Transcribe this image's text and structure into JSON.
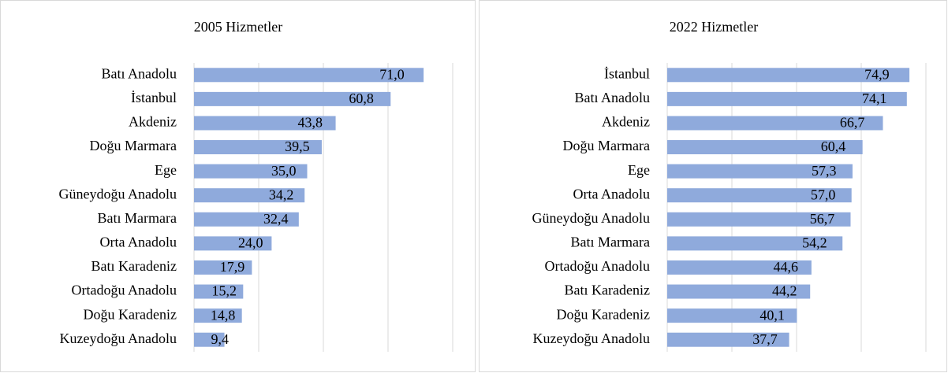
{
  "chart_data": [
    {
      "type": "bar",
      "title": "2005 Hizmetler",
      "categories": [
        "Batı Anadolu",
        "İstanbul",
        "Akdeniz",
        "Doğu Marmara",
        "Ege",
        "Güneydoğu Anadolu",
        "Batı Marmara",
        "Orta Anadolu",
        "Batı Karadeniz",
        "Ortadoğu Anadolu",
        "Doğu Karadeniz",
        "Kuzeydoğu Anadolu"
      ],
      "values": [
        71.0,
        60.8,
        43.8,
        39.5,
        35.0,
        34.2,
        32.4,
        24.0,
        17.9,
        15.2,
        14.8,
        9.4
      ],
      "value_labels": [
        "71,0",
        "60,8",
        "43,8",
        "39,5",
        "35,0",
        "34,2",
        "32,4",
        "24,0",
        "17,9",
        "15,2",
        "14,8",
        "9,4"
      ],
      "color": "#8faadc",
      "xlim": [
        0,
        80
      ],
      "xticks": [
        0,
        20,
        40,
        60,
        80
      ],
      "grid": true
    },
    {
      "type": "bar",
      "title": "2022 Hizmetler",
      "categories": [
        "İstanbul",
        "Batı Anadolu",
        "Akdeniz",
        "Doğu Marmara",
        "Ege",
        "Orta Anadolu",
        "Güneydoğu Anadolu",
        "Batı Marmara",
        "Ortadoğu Anadolu",
        "Batı Karadeniz",
        "Doğu Karadeniz",
        "Kuzeydoğu Anadolu"
      ],
      "values": [
        74.9,
        74.1,
        66.7,
        60.4,
        57.3,
        57.0,
        56.7,
        54.2,
        44.6,
        44.2,
        40.1,
        37.7
      ],
      "value_labels": [
        "74,9",
        "74,1",
        "66,7",
        "60,4",
        "57,3",
        "57,0",
        "56,7",
        "54,2",
        "44,6",
        "44,2",
        "40,1",
        "37,7"
      ],
      "color": "#8faadc",
      "xlim": [
        0,
        80
      ],
      "xticks": [
        0,
        20,
        40,
        60,
        80
      ],
      "grid": true
    }
  ]
}
